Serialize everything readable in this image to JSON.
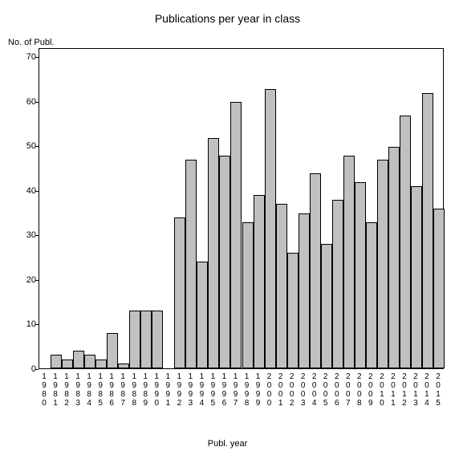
{
  "chart": {
    "type": "bar",
    "title": "Publications per year in class",
    "title_fontsize": 14,
    "ylabel": "No. of Publ.",
    "xlabel": "Publ. year",
    "label_fontsize": 11,
    "background_color": "#ffffff",
    "bar_color": "#c0c0c0",
    "border_color": "#000000",
    "ylim": [
      0,
      72
    ],
    "yticks": [
      0,
      10,
      20,
      30,
      40,
      50,
      60,
      70
    ],
    "categories": [
      "1980",
      "1981",
      "1982",
      "1983",
      "1984",
      "1985",
      "1986",
      "1987",
      "1988",
      "1989",
      "1990",
      "1991",
      "1992",
      "1993",
      "1994",
      "1995",
      "1996",
      "1997",
      "1998",
      "1999",
      "2000",
      "2001",
      "2002",
      "2003",
      "2004",
      "2005",
      "2006",
      "2007",
      "2008",
      "2009",
      "2010",
      "2011",
      "2012",
      "2013",
      "2014",
      "2015"
    ],
    "values": [
      0,
      3,
      2,
      4,
      3,
      2,
      8,
      1,
      13,
      13,
      13,
      0,
      34,
      47,
      24,
      52,
      48,
      60,
      33,
      39,
      63,
      37,
      26,
      35,
      44,
      28,
      38,
      48,
      42,
      33,
      47,
      50,
      57,
      41,
      62,
      36
    ]
  }
}
